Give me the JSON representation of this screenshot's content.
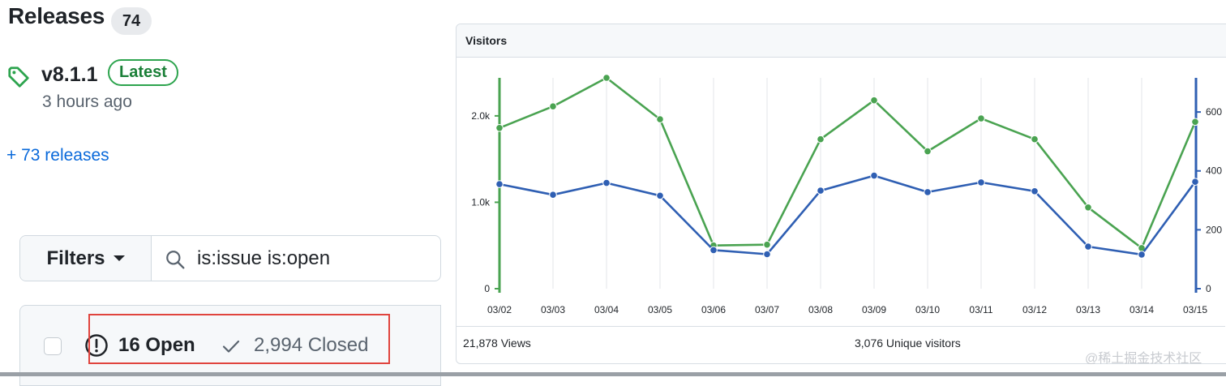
{
  "releases": {
    "title": "Releases",
    "count": "74",
    "latest_version": "v8.1.1",
    "latest_badge": "Latest",
    "published": "3 hours ago",
    "more_link": "+ 73 releases"
  },
  "issues": {
    "filters_label": "Filters",
    "search_value": "is:issue is:open",
    "open_label": "16 Open",
    "closed_label": "2,994 Closed"
  },
  "visitors": {
    "title": "Visitors",
    "views_summary": "21,878 Views",
    "unique_summary": "3,076 Unique visitors"
  },
  "watermark": "@稀土掘金技术社区",
  "colors": {
    "views": "#4aa351",
    "unique": "#2f5fb3",
    "link": "#0969da",
    "latest": "#1a7f37",
    "highlight": "#e0443e"
  },
  "chart_data": {
    "type": "line",
    "categories": [
      "03/02",
      "03/03",
      "03/04",
      "03/05",
      "03/06",
      "03/07",
      "03/08",
      "03/09",
      "03/10",
      "03/11",
      "03/12",
      "03/13",
      "03/14",
      "03/15"
    ],
    "series": [
      {
        "axis": "left",
        "values": [
          1860,
          2110,
          2440,
          1960,
          500,
          510,
          1730,
          2180,
          1590,
          1970,
          1730,
          940,
          470,
          1930
        ]
      },
      {
        "axis": "right",
        "values": [
          355,
          319,
          359,
          316,
          131,
          117,
          333,
          384,
          328,
          361,
          331,
          143,
          116,
          363
        ]
      }
    ],
    "y_left": {
      "min": 0,
      "max": 2440,
      "ticks": [
        0,
        1000,
        2000
      ],
      "tick_labels": [
        "0",
        "1.0k",
        "2.0k"
      ]
    },
    "y_right": {
      "min": 0,
      "max": 716,
      "ticks": [
        0,
        200,
        400,
        600
      ],
      "tick_labels": [
        "0",
        "200",
        "400",
        "600"
      ]
    },
    "grid_x": true,
    "legend": "none"
  }
}
